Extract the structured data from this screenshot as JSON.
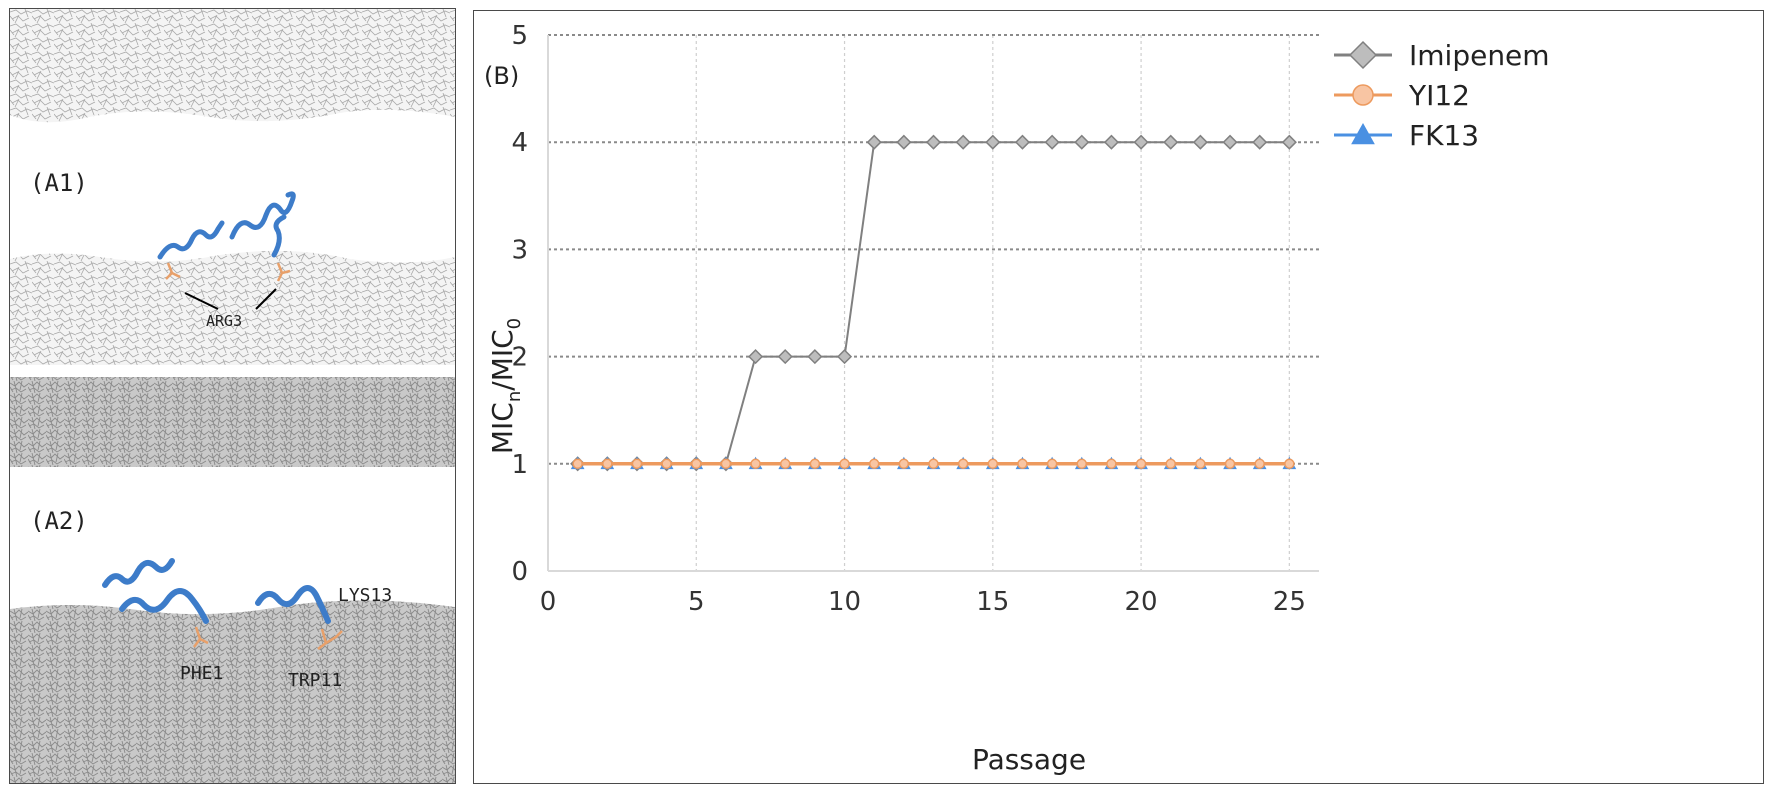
{
  "panel_a": {
    "label_a1": "(A1)",
    "label_a2": "(A2)",
    "annotation_arg3": "ARG3",
    "annotation_lys13": "LYS13",
    "annotation_phe1": "PHE1",
    "annotation_trp11": "TRP11"
  },
  "chart_data": {
    "type": "line",
    "panel_label": "(B)",
    "title": "",
    "xlabel": "Passage",
    "ylabel": "MIC",
    "ylabel_sub_n": "n",
    "ylabel_slash": "/MIC",
    "ylabel_sub_0": "0",
    "xlim": [
      0,
      26
    ],
    "ylim": [
      0,
      5
    ],
    "xticks": [
      0,
      5,
      10,
      15,
      20,
      25
    ],
    "yticks": [
      0,
      1,
      2,
      3,
      4,
      5
    ],
    "x": [
      1,
      2,
      3,
      4,
      5,
      6,
      7,
      8,
      9,
      10,
      11,
      12,
      13,
      14,
      15,
      16,
      17,
      18,
      19,
      20,
      21,
      22,
      23,
      24,
      25
    ],
    "grid": true,
    "legend_position": "top-right",
    "series": [
      {
        "name": "Imipenem",
        "color": "#808080",
        "fill": "#bdbdbd",
        "marker": "diamond",
        "values": [
          1,
          1,
          1,
          1,
          1,
          1,
          2,
          2,
          2,
          2,
          4,
          4,
          4,
          4,
          4,
          4,
          4,
          4,
          4,
          4,
          4,
          4,
          4,
          4,
          4
        ]
      },
      {
        "name": "FK13",
        "color": "#4a90e2",
        "fill": "#4a90e2",
        "marker": "triangle",
        "values": [
          1,
          1,
          1,
          1,
          1,
          1,
          1,
          1,
          1,
          1,
          1,
          1,
          1,
          1,
          1,
          1,
          1,
          1,
          1,
          1,
          1,
          1,
          1,
          1,
          1
        ]
      },
      {
        "name": "YI12",
        "color": "#ed9a5e",
        "fill": "#f8c5a3",
        "marker": "circle",
        "values": [
          1,
          1,
          1,
          1,
          1,
          1,
          1,
          1,
          1,
          1,
          1,
          1,
          1,
          1,
          1,
          1,
          1,
          1,
          1,
          1,
          1,
          1,
          1,
          1,
          1
        ]
      }
    ],
    "legend_order": [
      0,
      2,
      1
    ]
  }
}
